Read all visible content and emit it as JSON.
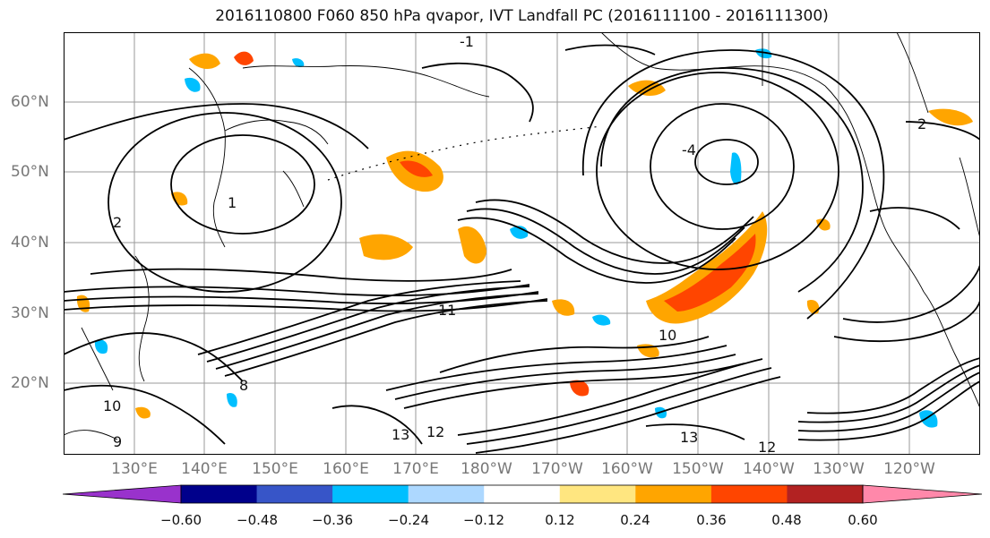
{
  "title": "2016110800 F060 850 hPa qvapor, IVT Landfall PC (2016111100 - 2016111300)",
  "lat_labels": [
    "60°N",
    "50°N",
    "40°N",
    "30°N",
    "20°N"
  ],
  "lon_labels": [
    "130°E",
    "140°E",
    "150°E",
    "160°E",
    "170°E",
    "180°W",
    "170°W",
    "160°W",
    "150°W",
    "140°W",
    "130°W",
    "120°W"
  ],
  "contour_labels": [
    "-1",
    "-4",
    "2",
    "2",
    "1",
    "11",
    "10",
    "13",
    "12",
    "13",
    "12",
    "9",
    "10",
    "8"
  ],
  "colorbar": {
    "colors": [
      "#9932cc",
      "#00008b",
      "#3755c8",
      "#00bfff",
      "#add8ff",
      "#ffffff",
      "#ffe680",
      "#ffa500",
      "#ff4500",
      "#b22222",
      "#ff88aa"
    ],
    "ticks": [
      "−0.60",
      "−0.48",
      "−0.36",
      "−0.24",
      "−0.12",
      "0.12",
      "0.24",
      "0.36",
      "0.48",
      "0.60"
    ]
  }
}
